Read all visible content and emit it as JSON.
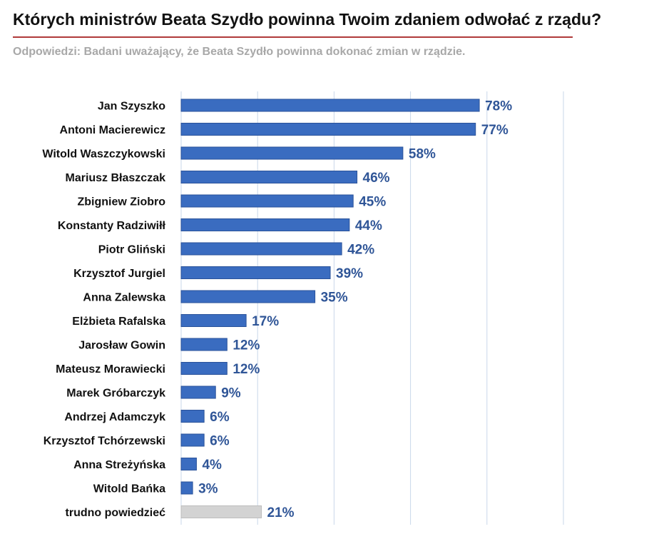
{
  "chart_data": {
    "type": "bar",
    "orientation": "horizontal",
    "title": "Których ministrów Beata Szydło powinna Twoim zdaniem odwołać z rządu?",
    "subtitle": "Odpowiedzi: Badani uważający, że Beata Szydło powinna dokonać zmian w rządzie.",
    "categories": [
      "Jan Szyszko",
      "Antoni Macierewicz",
      "Witold Waszczykowski",
      "Mariusz Błaszczak",
      "Zbigniew Ziobro",
      "Konstanty Radziwiłł",
      "Piotr Gliński",
      "Krzysztof Jurgiel",
      "Anna Zalewska",
      "Elżbieta Rafalska",
      "Jarosław Gowin",
      "Mateusz Morawiecki",
      "Marek Gróbarczyk",
      "Andrzej Adamczyk",
      "Krzysztof Tchórzewski",
      "Anna Streżyńska",
      "Witold Bańka",
      "trudno powiedzieć"
    ],
    "values": [
      78,
      77,
      58,
      46,
      45,
      44,
      42,
      39,
      35,
      17,
      12,
      12,
      9,
      6,
      6,
      4,
      3,
      21
    ],
    "value_labels": [
      "78%",
      "77%",
      "58%",
      "46%",
      "45%",
      "44%",
      "42%",
      "39%",
      "35%",
      "17%",
      "12%",
      "12%",
      "9%",
      "6%",
      "6%",
      "4%",
      "3%",
      "21%"
    ],
    "unit": "%",
    "xlim": [
      0,
      100
    ],
    "grid": "vertical",
    "legend": "none",
    "colors": {
      "bar": "#3a6cc0",
      "bar_border": "#2a529a",
      "special_bar": "#d3d3d3",
      "special_bar_border": "#bdbdbd",
      "value_text": "#2f5597",
      "grid": "#c9d7ea",
      "title_rule": "#b03a3a"
    }
  }
}
